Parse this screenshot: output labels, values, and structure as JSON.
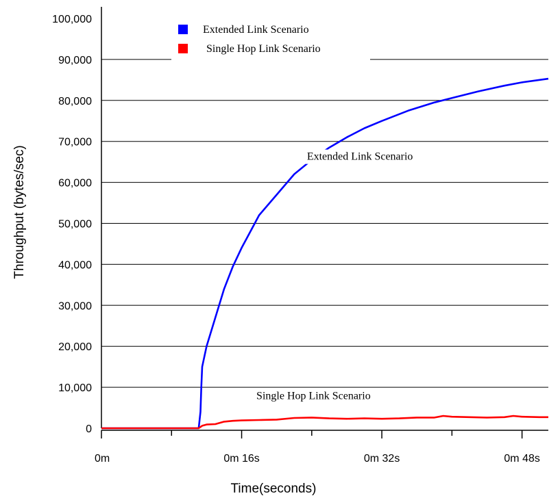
{
  "chart_data": {
    "type": "line",
    "title": "",
    "xlabel": "Time(seconds)",
    "ylabel": "Throughput (bytes/sec)",
    "xlim": [
      0,
      51
    ],
    "ylim": [
      0,
      100000
    ],
    "grid": true,
    "legend_position": "top-left",
    "x_ticks": [
      {
        "value": 0,
        "label": "0m"
      },
      {
        "value": 8,
        "label": ""
      },
      {
        "value": 16,
        "label": "0m 16s"
      },
      {
        "value": 24,
        "label": ""
      },
      {
        "value": 32,
        "label": "0m 32s"
      },
      {
        "value": 40,
        "label": ""
      },
      {
        "value": 48,
        "label": "0m 48s"
      }
    ],
    "y_ticks": [
      {
        "value": 0,
        "label": "0"
      },
      {
        "value": 10000,
        "label": "10,000"
      },
      {
        "value": 20000,
        "label": "20,000"
      },
      {
        "value": 30000,
        "label": "30,000"
      },
      {
        "value": 40000,
        "label": "40,000"
      },
      {
        "value": 50000,
        "label": "50,000"
      },
      {
        "value": 60000,
        "label": "60,000"
      },
      {
        "value": 70000,
        "label": "70,000"
      },
      {
        "value": 80000,
        "label": "80,000"
      },
      {
        "value": 90000,
        "label": "90,000"
      },
      {
        "value": 100000,
        "label": "100,000"
      }
    ],
    "series": [
      {
        "name": "Extended Link Scenario",
        "color": "#0000ff",
        "x": [
          0,
          5,
          10,
          11.1,
          11.3,
          11.4,
          11.5,
          12,
          13,
          14,
          15,
          16,
          17,
          18,
          20,
          22,
          24,
          26,
          28,
          30,
          32,
          35,
          38,
          40,
          43,
          46,
          48,
          51
        ],
        "y": [
          0,
          0,
          0,
          0,
          4000,
          10000,
          15000,
          20000,
          27000,
          34000,
          39500,
          44000,
          48000,
          52000,
          57000,
          62000,
          65500,
          68500,
          71000,
          73200,
          75000,
          77500,
          79500,
          80600,
          82200,
          83600,
          84400,
          85300
        ]
      },
      {
        "name": "Single Hop Link Scenario",
        "color": "#ff0000",
        "x": [
          0,
          5,
          10,
          11.1,
          11.5,
          12,
          13,
          14,
          15,
          16,
          18,
          20,
          22,
          24,
          26,
          28,
          30,
          32,
          34,
          36,
          38,
          39,
          40,
          42,
          44,
          46,
          47,
          48,
          50,
          51
        ],
        "y": [
          0,
          0,
          0,
          0,
          600,
          900,
          1000,
          1600,
          1800,
          1900,
          2000,
          2100,
          2500,
          2600,
          2400,
          2300,
          2400,
          2300,
          2400,
          2600,
          2600,
          3000,
          2800,
          2700,
          2600,
          2700,
          3000,
          2800,
          2700,
          2700
        ]
      }
    ],
    "legend": [
      {
        "label": "Extended Link Scenario",
        "color": "#0000ff"
      },
      {
        "label": "Single Hop Link Scenario",
        "color": "#ff0000"
      }
    ],
    "annotations": [
      {
        "text": "Extended Link Scenario",
        "x": 29.5,
        "y": 65500
      },
      {
        "text": "Single Hop Link Scenario",
        "x": 24.2,
        "y": 7100
      }
    ]
  }
}
